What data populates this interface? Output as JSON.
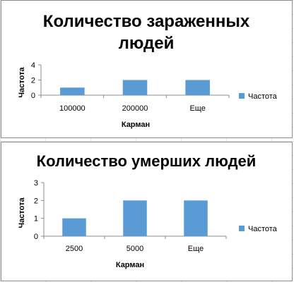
{
  "chart_data": [
    {
      "type": "bar",
      "title": "Количество зараженных людей",
      "xlabel": "Карман",
      "ylabel": "Частота",
      "categories": [
        "100000",
        "200000",
        "Еще"
      ],
      "series": [
        {
          "name": "Частота",
          "values": [
            1,
            2,
            2
          ]
        }
      ],
      "ylim": [
        0,
        4
      ],
      "yticks": [
        "0",
        "2",
        "4"
      ],
      "legend": "right",
      "grid": false,
      "color": "#5b9bd5"
    },
    {
      "type": "bar",
      "title": "Количество умерших людей",
      "xlabel": "Карман",
      "ylabel": "Частота",
      "categories": [
        "2500",
        "5000",
        "Еще"
      ],
      "series": [
        {
          "name": "Частота",
          "values": [
            1,
            2,
            2
          ]
        }
      ],
      "ylim": [
        0,
        3
      ],
      "yticks": [
        "0",
        "1",
        "2",
        "3"
      ],
      "legend": "right",
      "grid": false,
      "color": "#5b9bd5"
    }
  ]
}
